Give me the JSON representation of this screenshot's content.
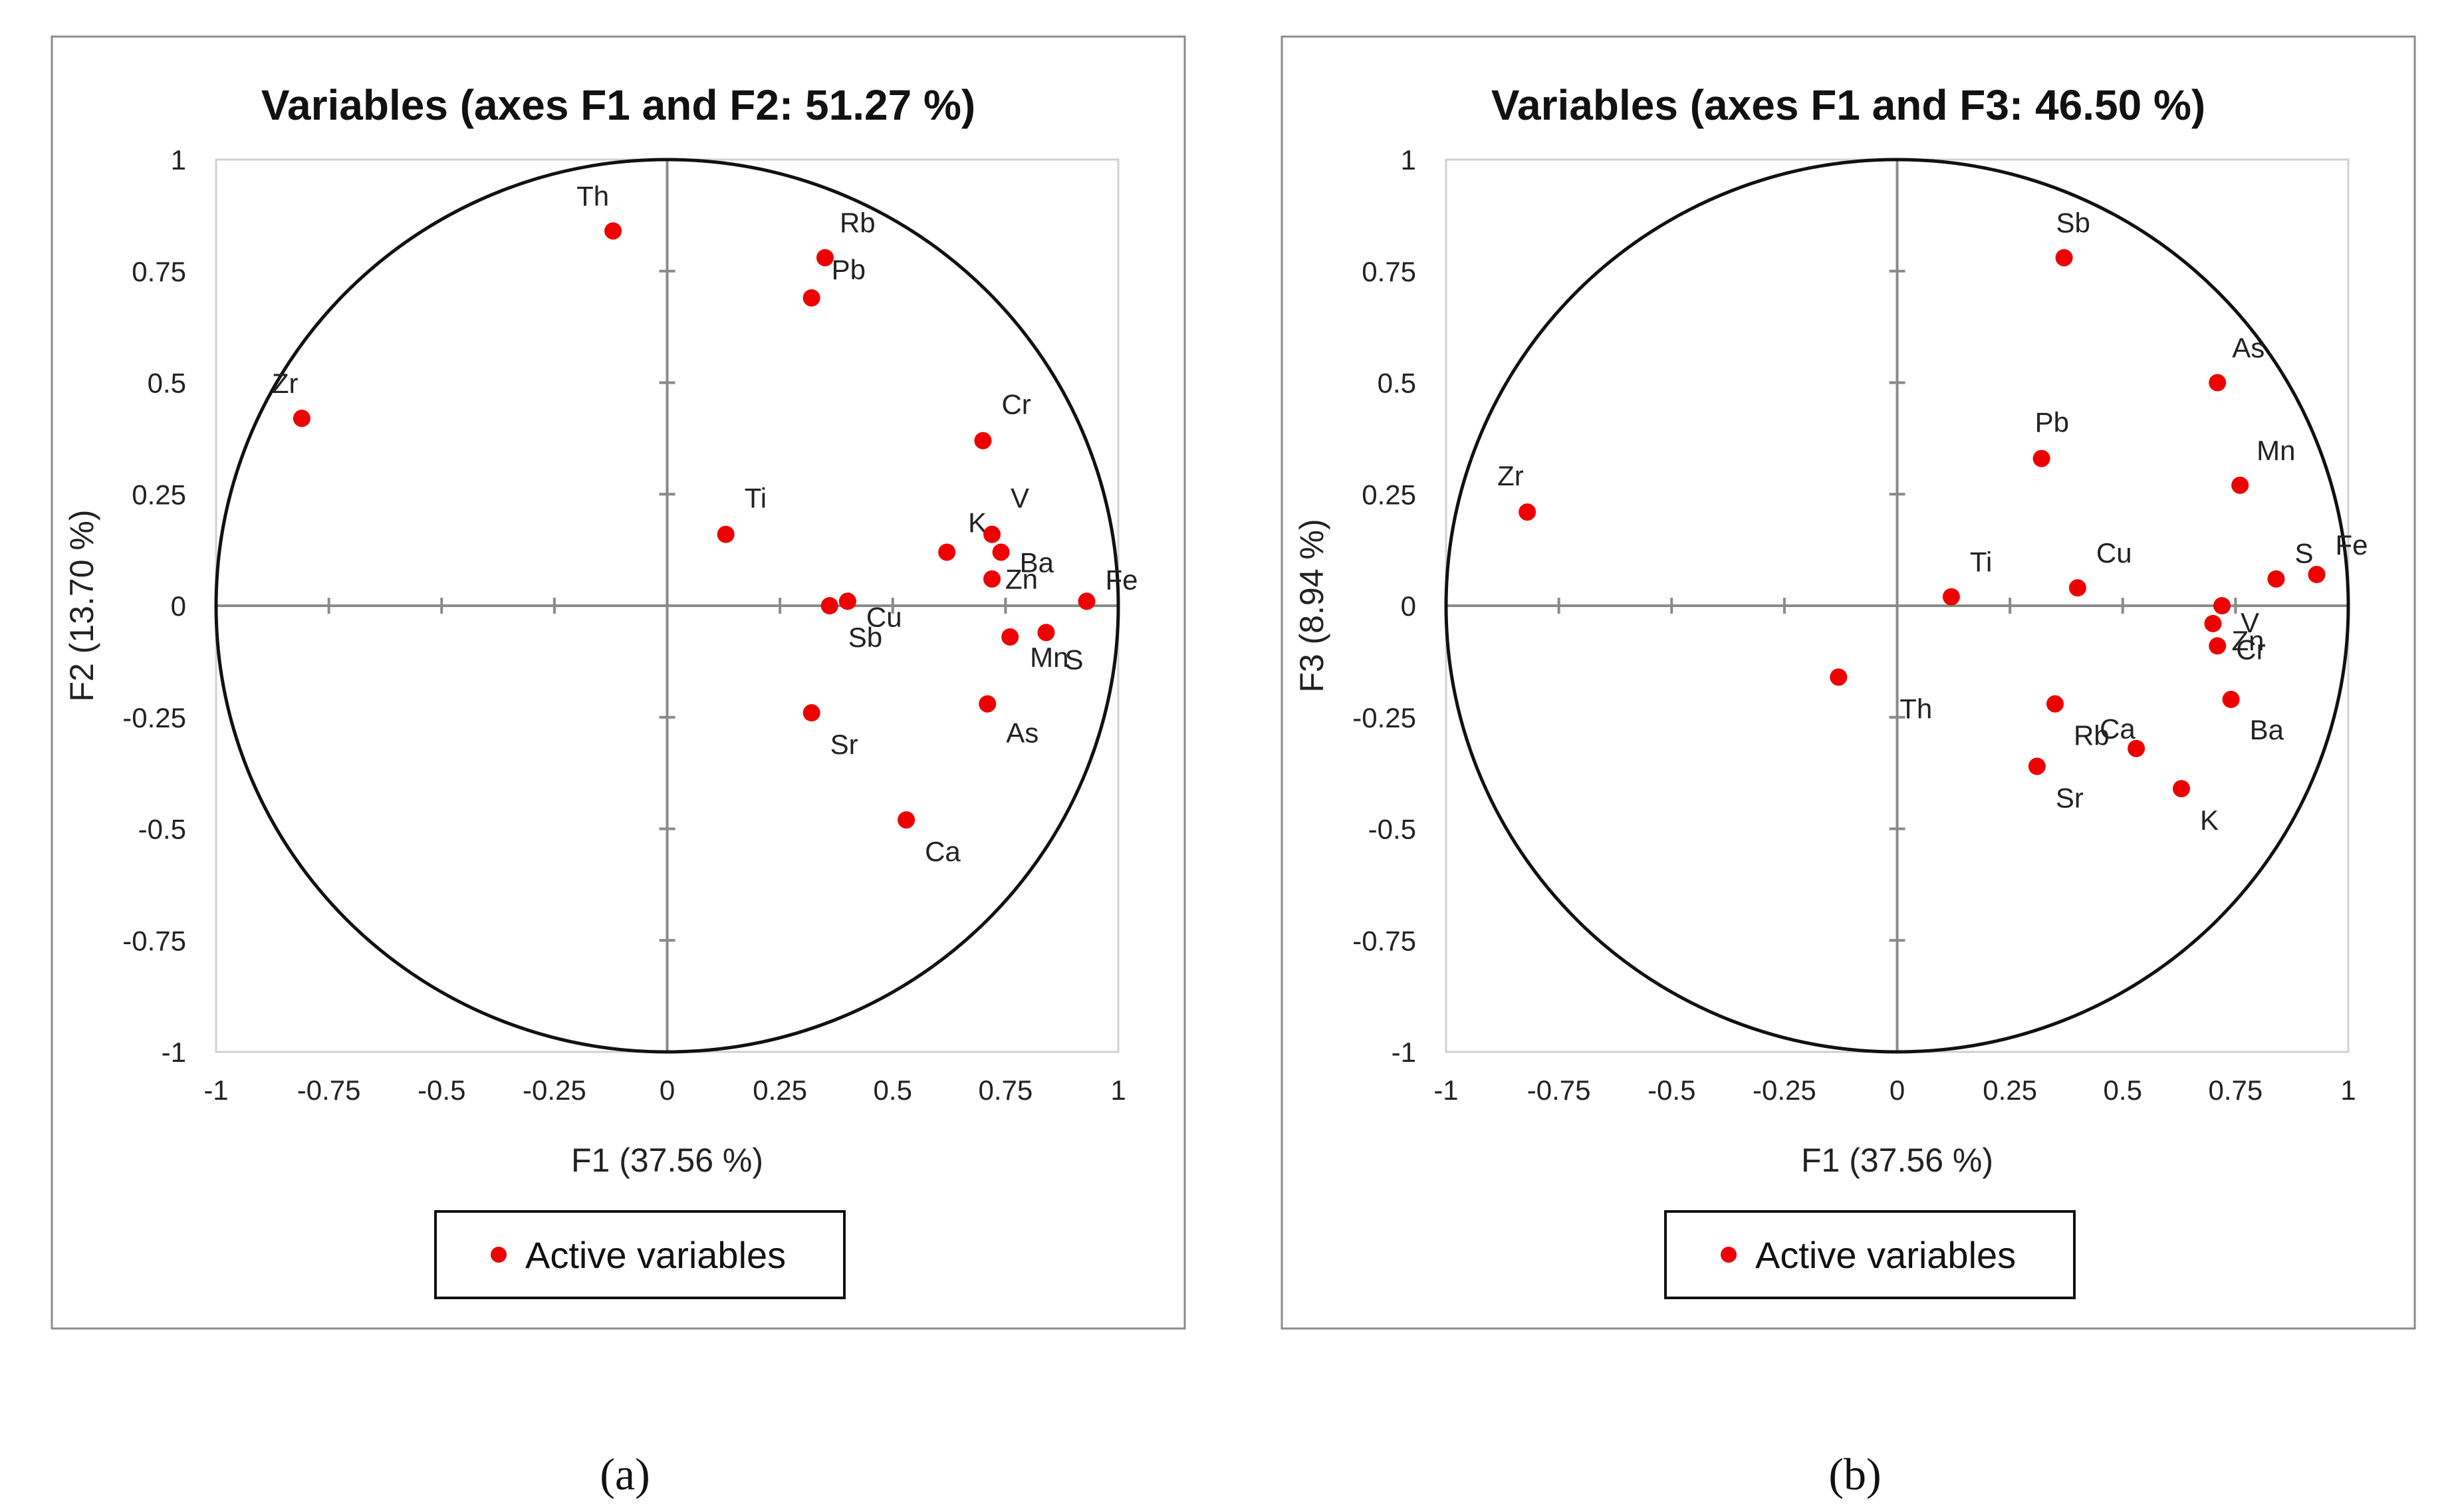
{
  "point_color": "#ee0000",
  "chart_data": [
    {
      "type": "scatter",
      "caption": "(a)",
      "title": "Variables (axes F1 and F2: 51.27 %)",
      "xlabel": "F1 (37.56 %)",
      "ylabel": "F2 (13.70 %)",
      "xlim": [
        -1,
        1
      ],
      "ylim": [
        -1,
        1
      ],
      "xticks": [
        "-1",
        "-0.75",
        "-0.5",
        "-0.25",
        "0",
        "0.25",
        "0.5",
        "0.75",
        "1"
      ],
      "yticks": [
        "-1",
        "-0.75",
        "-0.5",
        "-0.25",
        "0",
        "0.25",
        "0.5",
        "0.75",
        "1"
      ],
      "legend": "Active variables",
      "points": [
        {
          "label": "Th",
          "x": -0.12,
          "y": 0.84
        },
        {
          "label": "Rb",
          "x": 0.35,
          "y": 0.78
        },
        {
          "label": "Pb",
          "x": 0.32,
          "y": 0.69
        },
        {
          "label": "Zr",
          "x": -0.81,
          "y": 0.42
        },
        {
          "label": "Cr",
          "x": 0.7,
          "y": 0.37
        },
        {
          "label": "Ti",
          "x": 0.13,
          "y": 0.16
        },
        {
          "label": "K",
          "x": 0.62,
          "y": 0.12
        },
        {
          "label": "V",
          "x": 0.72,
          "y": 0.16
        },
        {
          "label": "Ba",
          "x": 0.74,
          "y": 0.12
        },
        {
          "label": "Zn",
          "x": 0.72,
          "y": 0.06
        },
        {
          "label": "Fe",
          "x": 0.93,
          "y": 0.01
        },
        {
          "label": "Sb",
          "x": 0.36,
          "y": 0.0
        },
        {
          "label": "Cu",
          "x": 0.4,
          "y": 0.01
        },
        {
          "label": "Mn",
          "x": 0.76,
          "y": -0.07
        },
        {
          "label": "S",
          "x": 0.84,
          "y": -0.06
        },
        {
          "label": "Sr",
          "x": 0.32,
          "y": -0.24
        },
        {
          "label": "As",
          "x": 0.71,
          "y": -0.22
        },
        {
          "label": "Ca",
          "x": 0.53,
          "y": -0.48
        }
      ]
    },
    {
      "type": "scatter",
      "caption": "(b)",
      "title": "Variables (axes F1 and F3: 46.50 %)",
      "xlabel": "F1 (37.56 %)",
      "ylabel": "F3 (8.94 %)",
      "xlim": [
        -1,
        1
      ],
      "ylim": [
        -1,
        1
      ],
      "xticks": [
        "-1",
        "-0.75",
        "-0.5",
        "-0.25",
        "0",
        "0.25",
        "0.5",
        "0.75",
        "1"
      ],
      "yticks": [
        "-1",
        "-0.75",
        "-0.5",
        "-0.25",
        "0",
        "0.25",
        "0.5",
        "0.75",
        "1"
      ],
      "legend": "Active variables",
      "points": [
        {
          "label": "Sb",
          "x": 0.37,
          "y": 0.78
        },
        {
          "label": "As",
          "x": 0.71,
          "y": 0.5
        },
        {
          "label": "Pb",
          "x": 0.32,
          "y": 0.33
        },
        {
          "label": "Mn",
          "x": 0.76,
          "y": 0.27
        },
        {
          "label": "Zr",
          "x": -0.82,
          "y": 0.21
        },
        {
          "label": "Ti",
          "x": 0.12,
          "y": 0.02
        },
        {
          "label": "Cu",
          "x": 0.4,
          "y": 0.04
        },
        {
          "label": "S",
          "x": 0.84,
          "y": 0.06
        },
        {
          "label": "Fe",
          "x": 0.93,
          "y": 0.07
        },
        {
          "label": "Zn",
          "x": 0.7,
          "y": -0.04
        },
        {
          "label": "Cr",
          "x": 0.71,
          "y": -0.09
        },
        {
          "label": "V",
          "x": 0.72,
          "y": 0.0
        },
        {
          "label": "Ba",
          "x": 0.74,
          "y": -0.21
        },
        {
          "label": "Th",
          "x": -0.13,
          "y": -0.16
        },
        {
          "label": "Rb",
          "x": 0.35,
          "y": -0.22
        },
        {
          "label": "Sr",
          "x": 0.31,
          "y": -0.36
        },
        {
          "label": "Ca",
          "x": 0.53,
          "y": -0.32
        },
        {
          "label": "K",
          "x": 0.63,
          "y": -0.41
        }
      ]
    }
  ]
}
